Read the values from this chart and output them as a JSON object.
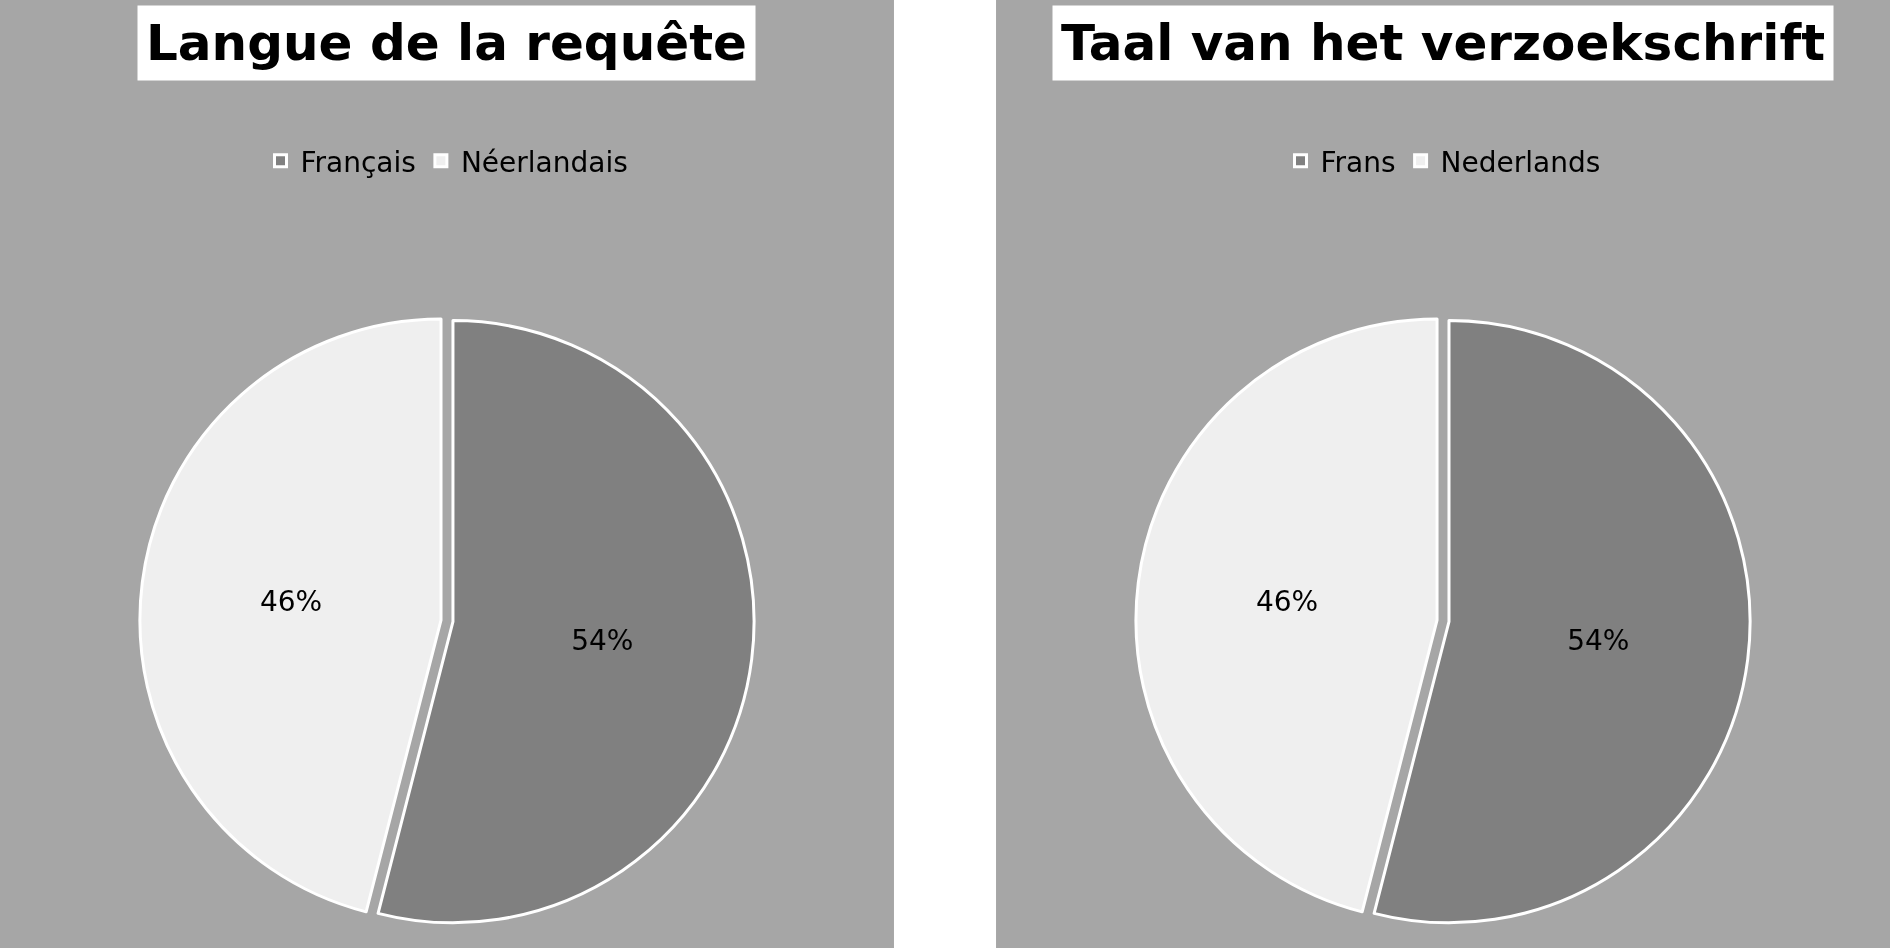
{
  "chart_data": [
    {
      "type": "pie",
      "title": "Langue de la requête",
      "categories": [
        "Français",
        "Néerlandais"
      ],
      "values": [
        54,
        46
      ],
      "colors": [
        "#808080",
        "#efefef"
      ],
      "value_labels": [
        "54%",
        "46%"
      ],
      "legend": "top"
    },
    {
      "type": "pie",
      "title": "Taal van het verzoekschrift",
      "categories": [
        "Frans",
        "Nederlands"
      ],
      "values": [
        54,
        46
      ],
      "colors": [
        "#808080",
        "#efefef"
      ],
      "value_labels": [
        "54%",
        "46%"
      ],
      "legend": "top"
    }
  ]
}
